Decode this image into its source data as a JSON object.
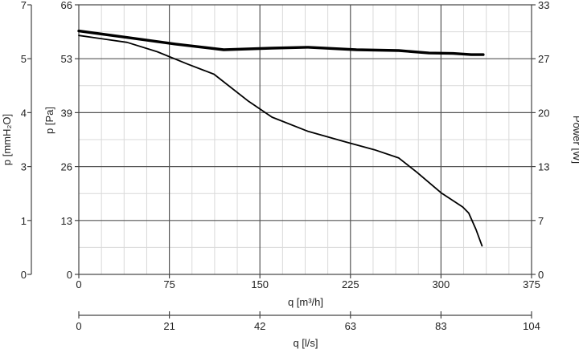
{
  "chart_data": {
    "type": "line",
    "x": {
      "label": "q [m³/h]",
      "range": [
        0,
        375
      ],
      "ticks": [
        "0",
        "75",
        "150",
        "225",
        "300",
        "375"
      ]
    },
    "x2": {
      "label": "q [l/s]",
      "range": [
        0,
        104
      ],
      "ticks": [
        "0",
        "21",
        "42",
        "63",
        "83",
        "104"
      ]
    },
    "y_left_outer": {
      "label": "p [mmH₂O]",
      "range": [
        0,
        7
      ],
      "ticks": [
        "0",
        "1",
        "3",
        "4",
        "5",
        "7"
      ]
    },
    "y_left_inner": {
      "label": "p [Pa]",
      "range": [
        0,
        66
      ],
      "ticks": [
        "0",
        "13",
        "26",
        "39",
        "53",
        "66"
      ]
    },
    "y_right": {
      "label": "Power [W]",
      "range": [
        0,
        33
      ],
      "ticks": [
        "0",
        "7",
        "13",
        "20",
        "27",
        "33"
      ]
    },
    "grid": true,
    "series": [
      {
        "axis": "pressure_pa",
        "color": "#000000",
        "points": [
          [
            0,
            58.5
          ],
          [
            40,
            56.8
          ],
          [
            65,
            54.5
          ],
          [
            90,
            51.5
          ],
          [
            112,
            49
          ],
          [
            140,
            42.5
          ],
          [
            160,
            38.5
          ],
          [
            190,
            35
          ],
          [
            220,
            32.5
          ],
          [
            245,
            30.5
          ],
          [
            265,
            28.5
          ],
          [
            280,
            25
          ],
          [
            300,
            20
          ],
          [
            318,
            16.5
          ],
          [
            323,
            15
          ],
          [
            329,
            11
          ],
          [
            334,
            7
          ]
        ]
      },
      {
        "axis": "power_w",
        "color": "#000000",
        "points": [
          [
            0,
            29.8
          ],
          [
            40,
            29
          ],
          [
            80,
            28.2
          ],
          [
            120,
            27.5
          ],
          [
            160,
            27.7
          ],
          [
            190,
            27.8
          ],
          [
            230,
            27.5
          ],
          [
            265,
            27.4
          ],
          [
            290,
            27.1
          ],
          [
            310,
            27.05
          ],
          [
            325,
            26.9
          ],
          [
            335,
            26.9
          ]
        ]
      }
    ]
  }
}
